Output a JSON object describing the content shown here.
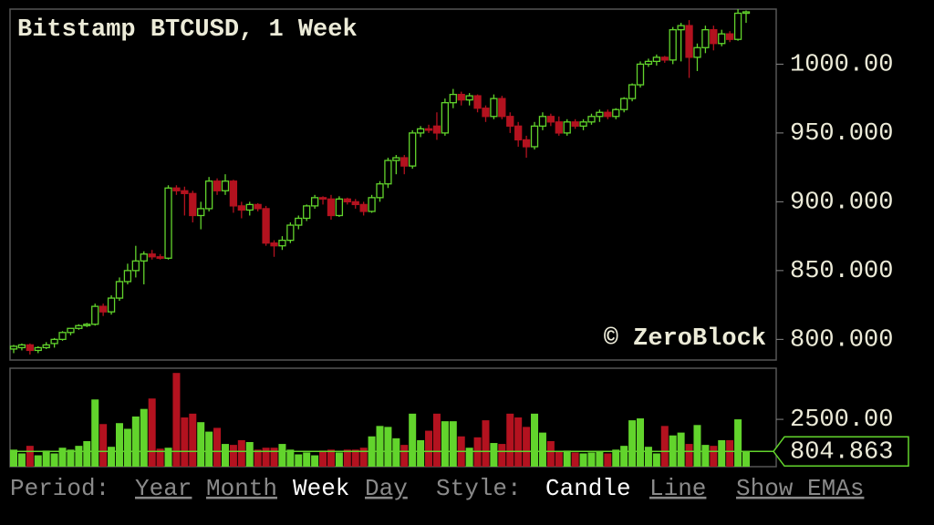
{
  "chart_data": {
    "type": "candlestick",
    "title": "Bitstamp BTCUSD, 1 Week",
    "watermark": "© ZeroBlock",
    "up_color": "#62d42c",
    "down_color": "#b3121f",
    "ylim": [
      785,
      1040
    ],
    "yticks": [
      {
        "value": 800,
        "label": "800.000"
      },
      {
        "value": 850,
        "label": "850.000"
      },
      {
        "value": 900,
        "label": "900.000"
      },
      {
        "value": 950,
        "label": "950.000"
      },
      {
        "value": 1000,
        "label": "1000.00"
      }
    ],
    "open": [
      793,
      794,
      796,
      792,
      794,
      797,
      800,
      805,
      808,
      810,
      811,
      824,
      820,
      830,
      842,
      850,
      857,
      862,
      860,
      859,
      910,
      908,
      906,
      890,
      895,
      915,
      908,
      915,
      897,
      894,
      898,
      895,
      870,
      868,
      872,
      883,
      888,
      897,
      903,
      902,
      890,
      902,
      900,
      898,
      893,
      903,
      913,
      930,
      932,
      926,
      950,
      953,
      955,
      950,
      972,
      978,
      974,
      977,
      968,
      962,
      975,
      962,
      955,
      945,
      940,
      955,
      962,
      958,
      950,
      958,
      955,
      958,
      962,
      965,
      962,
      967,
      975,
      985,
      1000,
      1002,
      1005,
      1003,
      1025,
      1028,
      1005,
      1012,
      1025,
      1015,
      1022,
      1018,
      1037
    ],
    "high": [
      796,
      797,
      797,
      795,
      798,
      801,
      806,
      808,
      811,
      812,
      826,
      826,
      832,
      845,
      855,
      868,
      864,
      865,
      862,
      912,
      912,
      911,
      908,
      900,
      918,
      917,
      920,
      916,
      900,
      900,
      899,
      897,
      872,
      875,
      885,
      890,
      898,
      905,
      904,
      905,
      904,
      903,
      902,
      900,
      905,
      915,
      932,
      934,
      934,
      952,
      955,
      956,
      965,
      975,
      982,
      980,
      979,
      978,
      970,
      978,
      977,
      965,
      958,
      948,
      958,
      965,
      964,
      962,
      960,
      960,
      960,
      964,
      967,
      967,
      968,
      976,
      986,
      1002,
      1004,
      1007,
      1006,
      1027,
      1030,
      1032,
      1015,
      1028,
      1028,
      1025,
      1024,
      1040,
      1039
    ],
    "low": [
      790,
      792,
      789,
      790,
      793,
      794,
      799,
      803,
      807,
      809,
      810,
      817,
      818,
      828,
      840,
      845,
      840,
      858,
      858,
      858,
      905,
      890,
      885,
      880,
      893,
      905,
      905,
      892,
      888,
      890,
      893,
      868,
      860,
      865,
      870,
      880,
      886,
      895,
      898,
      887,
      889,
      898,
      895,
      890,
      892,
      900,
      910,
      920,
      920,
      924,
      947,
      950,
      945,
      948,
      968,
      970,
      970,
      965,
      958,
      960,
      960,
      950,
      940,
      932,
      938,
      952,
      955,
      948,
      948,
      953,
      952,
      956,
      958,
      960,
      960,
      965,
      973,
      983,
      998,
      999,
      1001,
      1000,
      1002,
      990,
      995,
      1008,
      1010,
      1013,
      1016,
      1017,
      1030
    ],
    "close": [
      795,
      796,
      792,
      794,
      796,
      800,
      805,
      808,
      810,
      811,
      824,
      820,
      830,
      842,
      850,
      857,
      862,
      860,
      859,
      910,
      908,
      906,
      890,
      895,
      915,
      908,
      915,
      897,
      894,
      898,
      895,
      870,
      868,
      872,
      883,
      888,
      897,
      903,
      902,
      890,
      902,
      900,
      898,
      893,
      903,
      913,
      930,
      932,
      926,
      950,
      953,
      952,
      950,
      972,
      978,
      974,
      977,
      968,
      962,
      975,
      962,
      955,
      945,
      940,
      955,
      962,
      958,
      950,
      958,
      955,
      958,
      962,
      965,
      962,
      967,
      975,
      985,
      1000,
      1002,
      1005,
      1003,
      1025,
      1028,
      1005,
      1012,
      1025,
      1015,
      1022,
      1018,
      1037,
      1038
    ],
    "volume": {
      "ylim": [
        0,
        5200
      ],
      "yticks": [
        {
          "value": 2500,
          "label": "2500.00"
        }
      ],
      "values": [
        900,
        700,
        1100,
        600,
        850,
        700,
        1000,
        900,
        1100,
        1350,
        3550,
        2250,
        1050,
        2300,
        2000,
        2650,
        3050,
        3600,
        950,
        1000,
        4950,
        2600,
        2800,
        2350,
        1850,
        2050,
        1200,
        1150,
        1400,
        1300,
        900,
        1000,
        1000,
        1200,
        900,
        650,
        750,
        600,
        850,
        900,
        750,
        900,
        900,
        1000,
        1600,
        2150,
        2100,
        1500,
        1150,
        2800,
        1400,
        1900,
        2800,
        2400,
        2400,
        1600,
        1000,
        1550,
        2450,
        1250,
        1200,
        2800,
        2600,
        2100,
        2800,
        1800,
        1350,
        800,
        850,
        750,
        700,
        750,
        800,
        700,
        900,
        1100,
        2450,
        2550,
        1050,
        700,
        2150,
        1650,
        1800,
        1200,
        2200,
        1150,
        1100,
        1400,
        1400,
        2500,
        804.863
      ]
    }
  },
  "controls": {
    "period_label": "Period:",
    "periods": [
      "Year",
      "Month",
      "Week",
      "Day"
    ],
    "style_label": "Style:",
    "styles": [
      "Candle",
      "Line"
    ],
    "ema_toggle": "Show EMAs"
  }
}
